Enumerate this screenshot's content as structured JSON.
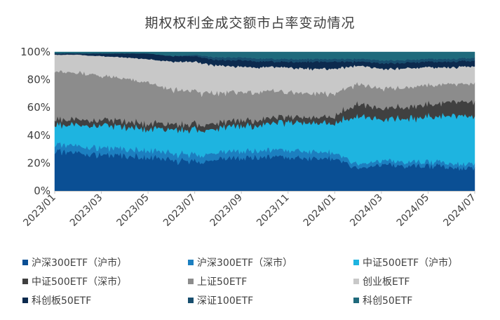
{
  "chart_data": {
    "type": "area",
    "stacked": true,
    "percent": true,
    "title": "期权权利金成交额市占率变动情况",
    "xlabel": "",
    "ylabel": "",
    "ylim": [
      0,
      100
    ],
    "y_ticks": [
      "0%",
      "20%",
      "40%",
      "60%",
      "80%",
      "100%"
    ],
    "x_ticks": [
      "2023/01",
      "2023/03",
      "2023/05",
      "2023/07",
      "2023/09",
      "2023/11",
      "2024/01",
      "2024/03",
      "2024/05",
      "2024/07"
    ],
    "grid": false,
    "legend": "bottom",
    "x": [
      "2023/01",
      "2023/02",
      "2023/03",
      "2023/04",
      "2023/05",
      "2023/06",
      "2023/07",
      "2023/08",
      "2023/09",
      "2023/10",
      "2023/11",
      "2023/12",
      "2024/01",
      "2024/02",
      "2024/03",
      "2024/04",
      "2024/05",
      "2024/06",
      "2024/07"
    ],
    "series": [
      {
        "name": "沪深300ETF（沪市）",
        "color": "#0a4f94",
        "values": [
          28,
          27,
          26,
          25,
          24,
          22,
          21,
          23,
          24,
          25,
          24,
          24,
          23,
          16,
          19,
          18,
          18,
          17,
          16
        ]
      },
      {
        "name": "沪深300ETF（深市）",
        "color": "#1c7fc0",
        "values": [
          5,
          5,
          5,
          5,
          5,
          5,
          5,
          5,
          5,
          5,
          5,
          5,
          4,
          3,
          3,
          3,
          3,
          3,
          3
        ]
      },
      {
        "name": "中证500ETF（沪市）",
        "color": "#1eb4e0",
        "values": [
          14,
          15,
          16,
          16,
          15,
          17,
          18,
          17,
          18,
          19,
          20,
          20,
          22,
          35,
          30,
          31,
          32,
          34,
          36
        ]
      },
      {
        "name": "中证500ETF（深市）",
        "color": "#404040",
        "values": [
          4,
          4,
          4,
          4,
          4,
          4,
          4,
          4,
          4,
          4,
          4,
          4,
          5,
          9,
          8,
          8,
          9,
          10,
          10
        ]
      },
      {
        "name": "上证50ETF",
        "color": "#8c8c8c",
        "values": [
          35,
          34,
          32,
          31,
          30,
          25,
          24,
          21,
          20,
          19,
          18,
          17,
          16,
          14,
          14,
          14,
          14,
          13,
          13
        ]
      },
      {
        "name": "创业板ETF",
        "color": "#c8c8c8",
        "values": [
          12,
          13,
          14,
          15,
          17,
          20,
          21,
          20,
          18,
          17,
          18,
          18,
          18,
          13,
          14,
          14,
          13,
          12,
          12
        ]
      },
      {
        "name": "科创板50ETF",
        "color": "#0c2a4e",
        "values": [
          1,
          1,
          2,
          3,
          4,
          4,
          4,
          4,
          5,
          4,
          4,
          5,
          5,
          3,
          4,
          4,
          4,
          4,
          4
        ]
      },
      {
        "name": "深证100ETF",
        "color": "#184e6e",
        "values": [
          0,
          0,
          0,
          0,
          0,
          0,
          1,
          2,
          2,
          2,
          2,
          2,
          2,
          2,
          2,
          2,
          2,
          2,
          2
        ]
      },
      {
        "name": "科创50ETF",
        "color": "#1f6a7c",
        "values": [
          1,
          1,
          1,
          1,
          1,
          3,
          2,
          4,
          4,
          5,
          5,
          5,
          5,
          5,
          6,
          6,
          5,
          5,
          4
        ]
      }
    ]
  }
}
